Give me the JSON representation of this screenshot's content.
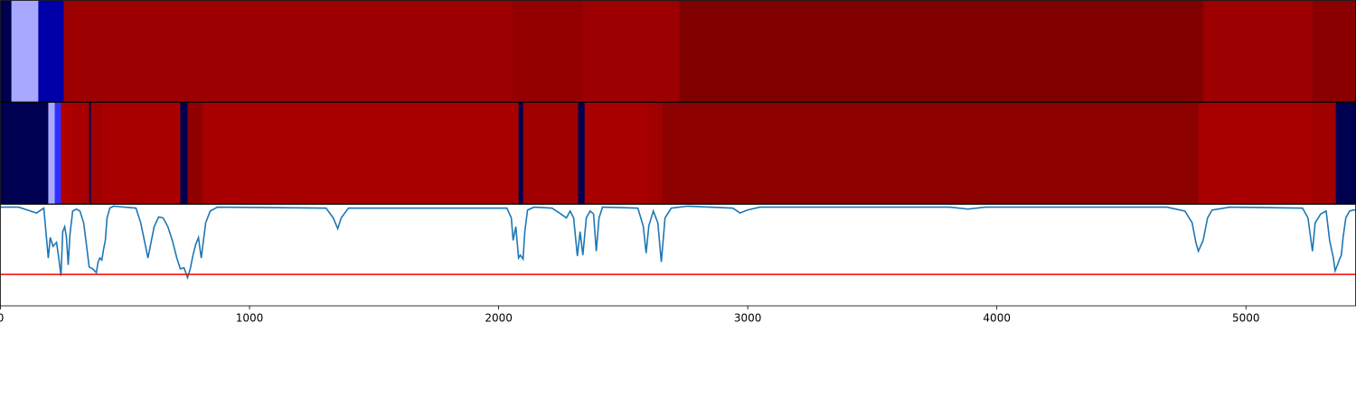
{
  "chart_data": [
    {
      "type": "segments",
      "xlim": [
        0,
        5440
      ],
      "bounds": [
        0,
        44,
        152,
        254,
        2058,
        2338,
        2726,
        4828,
        5267,
        5440
      ],
      "colors": [
        "#000050",
        "#a8a8ff",
        "#0000a8",
        "#9c0000",
        "#940000",
        "#9c0000",
        "#800000",
        "#9c0000",
        "#8a0000"
      ]
    },
    {
      "type": "segments",
      "xlim": [
        0,
        5440
      ],
      "bounds": [
        0,
        192,
        218,
        243,
        290,
        356,
        363,
        407,
        722,
        751,
        813,
        2080,
        2098,
        2319,
        2345,
        2599,
        2657,
        4809,
        5267,
        5361,
        5440
      ],
      "colors": [
        "#000050",
        "#a8a8ff",
        "#3030ff",
        "#b00000",
        "#a80000",
        "#000050",
        "#a00000",
        "#a80000",
        "#000050",
        "#900000",
        "#a80000",
        "#000050",
        "#a00000",
        "#000050",
        "#a80000",
        "#a00000",
        "#8c0000",
        "#a80000",
        "#a00000",
        "#000050"
      ]
    },
    {
      "type": "line",
      "xlim": [
        0,
        5440
      ],
      "ylim": [
        0,
        1
      ],
      "color": "#1f77b4",
      "xticks": [
        0,
        1000,
        2000,
        3000,
        4000,
        5000
      ],
      "hline": {
        "value": 0.31,
        "color": "#ff0000"
      },
      "x": [
        0,
        73,
        145,
        174,
        192,
        200,
        211,
        225,
        232,
        243,
        250,
        258,
        265,
        272,
        279,
        290,
        305,
        319,
        334,
        345,
        356,
        370,
        385,
        392,
        399,
        407,
        414,
        421,
        428,
        439,
        454,
        544,
        563,
        581,
        592,
        603,
        617,
        635,
        653,
        672,
        690,
        708,
        722,
        737,
        751,
        762,
        773,
        784,
        795,
        806,
        813,
        824,
        842,
        871,
        1307,
        1336,
        1354,
        1368,
        1397,
        2033,
        2051,
        2058,
        2069,
        2080,
        2087,
        2098,
        2105,
        2116,
        2142,
        2214,
        2250,
        2272,
        2287,
        2301,
        2316,
        2327,
        2338,
        2352,
        2367,
        2381,
        2392,
        2403,
        2417,
        2559,
        2581,
        2592,
        2603,
        2621,
        2639,
        2653,
        2668,
        2693,
        2759,
        2940,
        2969,
        2998,
        3049,
        3811,
        3884,
        3956,
        4682,
        4755,
        4784,
        4799,
        4809,
        4828,
        4846,
        4864,
        4936,
        5227,
        5249,
        5267,
        5278,
        5300,
        5322,
        5336,
        5351,
        5358,
        5369,
        5376,
        5383,
        5390,
        5401,
        5416,
        5430,
        5440
      ],
      "values": [
        0.99,
        0.99,
        0.93,
        0.98,
        0.47,
        0.68,
        0.59,
        0.63,
        0.51,
        0.29,
        0.74,
        0.79,
        0.68,
        0.4,
        0.71,
        0.95,
        0.97,
        0.95,
        0.83,
        0.61,
        0.38,
        0.36,
        0.32,
        0.43,
        0.47,
        0.45,
        0.56,
        0.65,
        0.88,
        0.98,
        1.0,
        0.98,
        0.83,
        0.61,
        0.47,
        0.61,
        0.79,
        0.89,
        0.88,
        0.79,
        0.65,
        0.47,
        0.36,
        0.37,
        0.27,
        0.36,
        0.5,
        0.61,
        0.68,
        0.47,
        0.61,
        0.83,
        0.95,
        0.99,
        0.98,
        0.88,
        0.77,
        0.88,
        0.98,
        0.98,
        0.88,
        0.65,
        0.79,
        0.47,
        0.5,
        0.46,
        0.74,
        0.96,
        0.99,
        0.98,
        0.92,
        0.88,
        0.95,
        0.88,
        0.49,
        0.74,
        0.5,
        0.88,
        0.95,
        0.92,
        0.54,
        0.88,
        0.99,
        0.98,
        0.79,
        0.52,
        0.8,
        0.95,
        0.83,
        0.43,
        0.88,
        0.98,
        1.0,
        0.98,
        0.93,
        0.96,
        0.99,
        0.99,
        0.97,
        0.99,
        0.99,
        0.95,
        0.83,
        0.63,
        0.54,
        0.65,
        0.88,
        0.96,
        0.99,
        0.98,
        0.88,
        0.54,
        0.83,
        0.92,
        0.95,
        0.65,
        0.47,
        0.34,
        0.41,
        0.46,
        0.5,
        0.68,
        0.88,
        0.95,
        0.96,
        0.96
      ]
    }
  ]
}
